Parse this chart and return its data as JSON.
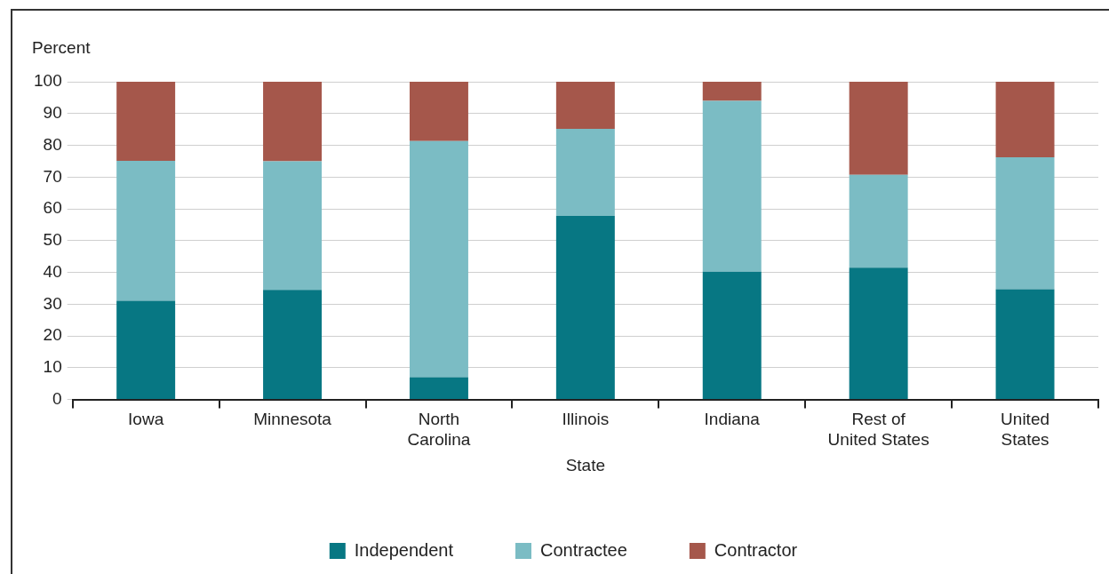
{
  "chart_data": {
    "type": "bar",
    "stacked": true,
    "xlabel": "State",
    "ylabel": "Percent",
    "categories": [
      "Iowa",
      "Minnesota",
      "North Carolina",
      "Illinois",
      "Indiana",
      "Rest of United States",
      "United States"
    ],
    "series": [
      {
        "name": "Independent",
        "color": "#077783",
        "values": [
          31.1,
          34.5,
          7,
          57.8,
          40.2,
          41.5,
          34.7
        ]
      },
      {
        "name": "Contractee",
        "color": "#7bbcc4",
        "values": [
          44,
          40.5,
          74.3,
          27.4,
          53.8,
          29.2,
          41.5
        ]
      },
      {
        "name": "Contractor",
        "color": "#a5574b",
        "values": [
          24.9,
          25,
          18.7,
          14.8,
          6,
          29.3,
          23.8
        ]
      }
    ],
    "ylim": [
      0,
      100
    ],
    "yticks": [
      0,
      10,
      20,
      30,
      40,
      50,
      60,
      70,
      80,
      90,
      100
    ],
    "grid": "y",
    "legend": "bottom"
  }
}
